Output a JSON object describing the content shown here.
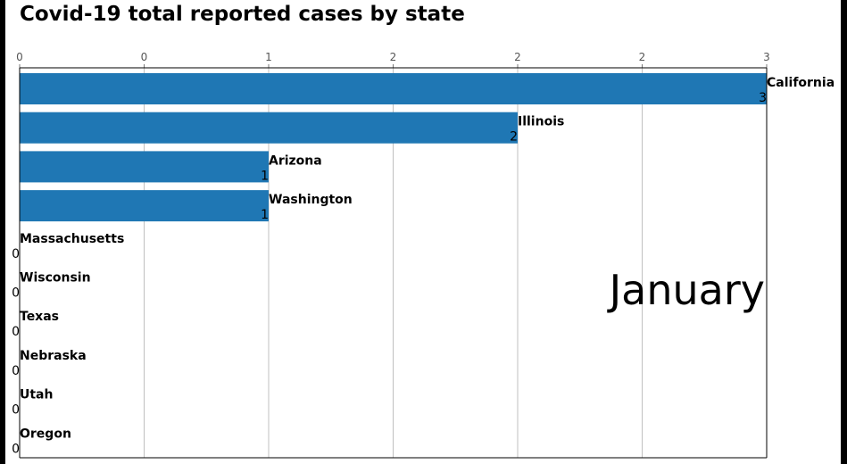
{
  "chart_data": {
    "type": "bar",
    "orientation": "horizontal",
    "title": "Covid-19 total reported cases by state",
    "categories": [
      "California",
      "Illinois",
      "Arizona",
      "Washington",
      "Massachusetts",
      "Wisconsin",
      "Texas",
      "Nebraska",
      "Utah",
      "Oregon"
    ],
    "values": [
      3,
      2,
      1,
      1,
      0,
      0,
      0,
      0,
      0,
      0
    ],
    "value_labels": [
      "3",
      "2",
      "1",
      "1",
      "0",
      "0",
      "0",
      "0",
      "0",
      "0"
    ],
    "x_ticks": [
      0,
      0.5,
      1,
      1.5,
      2,
      2.5,
      3
    ],
    "x_tick_labels": [
      "0",
      "0",
      "1",
      "2",
      "2",
      "2",
      "3"
    ],
    "xlim": [
      0,
      3
    ],
    "tick_position": "top",
    "grid": "vertical",
    "annotation": "January",
    "bar_color": "#1f77b4",
    "grid_color": "#b0b0b0",
    "tick_label_color": "#555555"
  }
}
